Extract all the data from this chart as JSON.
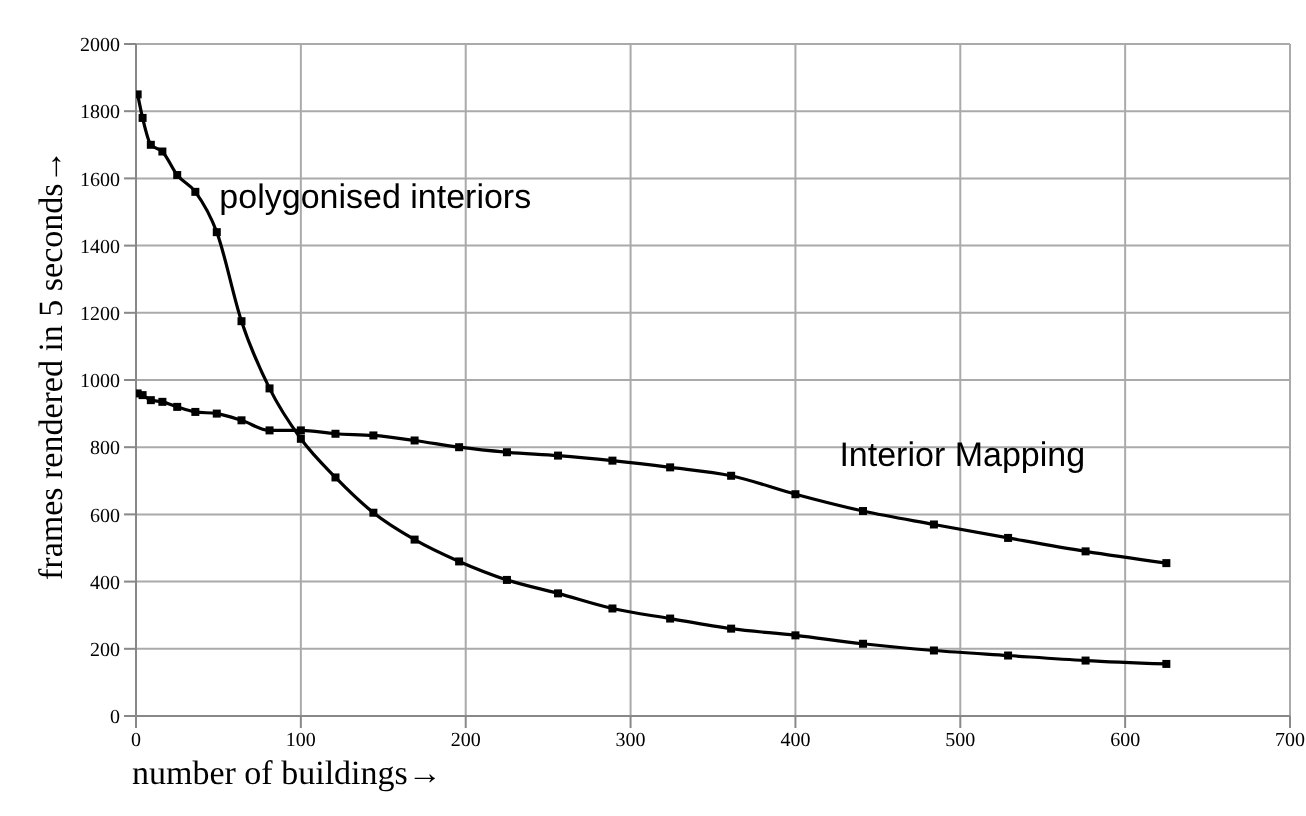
{
  "chart_data": {
    "type": "line",
    "xlabel": "number of buildings→",
    "ylabel": "frames rendered in 5 seconds→",
    "x": [
      1,
      4,
      9,
      16,
      25,
      36,
      49,
      64,
      81,
      100,
      121,
      144,
      169,
      196,
      225,
      256,
      289,
      324,
      361,
      400,
      441,
      484,
      529,
      576,
      625
    ],
    "series": [
      {
        "name": "polygonised interiors",
        "color": "#000000",
        "values": [
          1850,
          1780,
          1700,
          1680,
          1610,
          1560,
          1440,
          1175,
          975,
          825,
          710,
          605,
          525,
          460,
          405,
          365,
          320,
          290,
          260,
          240,
          215,
          195,
          180,
          165,
          155
        ]
      },
      {
        "name": "Interior Mapping",
        "color": "#000000",
        "values": [
          960,
          955,
          940,
          935,
          920,
          905,
          900,
          880,
          850,
          850,
          840,
          835,
          820,
          800,
          785,
          775,
          760,
          740,
          715,
          660,
          610,
          570,
          530,
          490,
          455
        ]
      }
    ],
    "xlim": [
      0,
      700
    ],
    "xticks": [
      0,
      100,
      200,
      300,
      400,
      500,
      600,
      700
    ],
    "ylim": [
      0,
      2000
    ],
    "yticks": [
      0,
      200,
      400,
      600,
      800,
      1000,
      1200,
      1400,
      1600,
      1800,
      2000
    ],
    "grid": true,
    "legend": false,
    "marker": "square",
    "line_style": "solid"
  }
}
